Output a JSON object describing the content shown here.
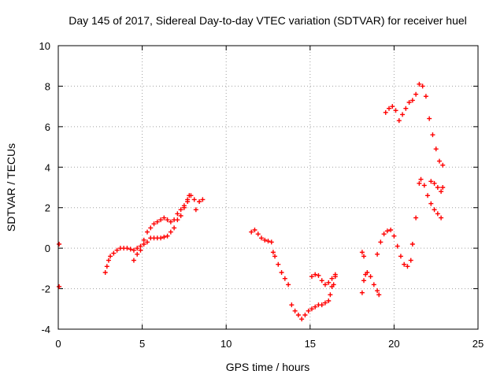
{
  "chart_data": {
    "type": "scatter",
    "title": "Day 145 of 2017, Sidereal Day-to-day VTEC variation (SDTVAR) for receiver huel",
    "xlabel": "GPS time / hours",
    "ylabel": "SDTVAR / TECUs",
    "xlim": [
      0,
      25
    ],
    "ylim": [
      -4,
      10
    ],
    "xticks": [
      "0",
      "5",
      "10",
      "15",
      "20",
      "25"
    ],
    "yticks": [
      "-4",
      "-2",
      "0",
      "2",
      "4",
      "6",
      "8",
      "10"
    ],
    "grid": true,
    "marker": "plus",
    "color": "#ff0000",
    "series": [
      {
        "values": [
          [
            0.05,
            0.2
          ],
          [
            0.05,
            -1.9
          ],
          [
            2.8,
            -1.2
          ],
          [
            2.9,
            -0.9
          ],
          [
            3.0,
            -0.6
          ],
          [
            3.1,
            -0.4
          ],
          [
            3.3,
            -0.25
          ],
          [
            3.5,
            -0.1
          ],
          [
            3.7,
            0.0
          ],
          [
            3.9,
            0.0
          ],
          [
            4.1,
            0.0
          ],
          [
            4.3,
            -0.05
          ],
          [
            4.5,
            -0.1
          ],
          [
            4.7,
            0.0
          ],
          [
            4.9,
            0.1
          ],
          [
            5.1,
            0.2
          ],
          [
            5.3,
            0.3
          ],
          [
            5.5,
            0.5
          ],
          [
            5.7,
            0.5
          ],
          [
            5.9,
            0.5
          ],
          [
            6.1,
            0.5
          ],
          [
            6.3,
            0.55
          ],
          [
            6.5,
            0.6
          ],
          [
            6.7,
            0.8
          ],
          [
            6.9,
            1.0
          ],
          [
            7.1,
            1.4
          ],
          [
            7.3,
            1.6
          ],
          [
            7.5,
            2.0
          ],
          [
            7.7,
            2.3
          ],
          [
            7.8,
            2.6
          ],
          [
            4.5,
            -0.6
          ],
          [
            4.7,
            -0.3
          ],
          [
            4.9,
            -0.1
          ],
          [
            5.1,
            0.4
          ],
          [
            5.3,
            0.8
          ],
          [
            5.5,
            1.0
          ],
          [
            5.7,
            1.2
          ],
          [
            5.9,
            1.3
          ],
          [
            6.1,
            1.4
          ],
          [
            6.3,
            1.5
          ],
          [
            6.5,
            1.4
          ],
          [
            6.7,
            1.3
          ],
          [
            6.9,
            1.4
          ],
          [
            7.1,
            1.7
          ],
          [
            7.3,
            1.9
          ],
          [
            7.5,
            2.1
          ],
          [
            7.7,
            2.4
          ],
          [
            7.9,
            2.6
          ],
          [
            8.1,
            2.4
          ],
          [
            8.2,
            1.9
          ],
          [
            8.4,
            2.3
          ],
          [
            8.6,
            2.4
          ],
          [
            11.5,
            0.8
          ],
          [
            11.7,
            0.9
          ],
          [
            11.9,
            0.7
          ],
          [
            12.1,
            0.5
          ],
          [
            12.3,
            0.4
          ],
          [
            12.5,
            0.35
          ],
          [
            12.7,
            0.3
          ],
          [
            12.8,
            -0.2
          ],
          [
            12.9,
            -0.4
          ],
          [
            13.1,
            -0.8
          ],
          [
            13.3,
            -1.2
          ],
          [
            13.5,
            -1.5
          ],
          [
            13.7,
            -1.8
          ],
          [
            13.9,
            -2.8
          ],
          [
            14.1,
            -3.1
          ],
          [
            14.3,
            -3.3
          ],
          [
            14.5,
            -3.5
          ],
          [
            14.7,
            -3.3
          ],
          [
            14.9,
            -3.1
          ],
          [
            15.1,
            -3.0
          ],
          [
            15.3,
            -2.9
          ],
          [
            15.5,
            -2.8
          ],
          [
            15.7,
            -2.8
          ],
          [
            15.9,
            -2.7
          ],
          [
            16.1,
            -2.6
          ],
          [
            16.2,
            -2.3
          ],
          [
            16.3,
            -1.9
          ],
          [
            16.4,
            -1.8
          ],
          [
            16.5,
            -1.4
          ],
          [
            15.1,
            -1.4
          ],
          [
            15.3,
            -1.3
          ],
          [
            15.5,
            -1.35
          ],
          [
            15.7,
            -1.6
          ],
          [
            15.9,
            -1.8
          ],
          [
            16.1,
            -1.7
          ],
          [
            16.3,
            -1.5
          ],
          [
            16.5,
            -1.3
          ],
          [
            18.1,
            -0.2
          ],
          [
            18.2,
            -0.4
          ],
          [
            18.1,
            -2.2
          ],
          [
            18.2,
            -1.6
          ],
          [
            18.3,
            -1.3
          ],
          [
            18.4,
            -1.2
          ],
          [
            18.6,
            -1.4
          ],
          [
            18.8,
            -1.8
          ],
          [
            19.0,
            -2.1
          ],
          [
            19.1,
            -2.3
          ],
          [
            19.0,
            -0.3
          ],
          [
            19.2,
            0.3
          ],
          [
            19.4,
            0.7
          ],
          [
            19.6,
            0.85
          ],
          [
            19.8,
            0.9
          ],
          [
            20.0,
            0.6
          ],
          [
            20.2,
            0.1
          ],
          [
            20.4,
            -0.4
          ],
          [
            20.6,
            -0.8
          ],
          [
            20.8,
            -0.9
          ],
          [
            21.0,
            -0.6
          ],
          [
            21.1,
            0.2
          ],
          [
            21.3,
            1.5
          ],
          [
            21.5,
            3.2
          ],
          [
            21.6,
            3.4
          ],
          [
            21.8,
            3.1
          ],
          [
            22.0,
            2.6
          ],
          [
            22.2,
            2.2
          ],
          [
            22.4,
            1.9
          ],
          [
            22.6,
            1.7
          ],
          [
            22.8,
            1.5
          ],
          [
            19.5,
            6.7
          ],
          [
            19.7,
            6.9
          ],
          [
            19.9,
            7.0
          ],
          [
            20.1,
            6.8
          ],
          [
            20.3,
            6.3
          ],
          [
            20.5,
            6.6
          ],
          [
            20.7,
            6.9
          ],
          [
            20.9,
            7.2
          ],
          [
            21.1,
            7.3
          ],
          [
            21.3,
            7.6
          ],
          [
            21.5,
            8.1
          ],
          [
            21.7,
            8.0
          ],
          [
            21.9,
            7.5
          ],
          [
            22.1,
            6.4
          ],
          [
            22.3,
            5.6
          ],
          [
            22.5,
            4.9
          ],
          [
            22.7,
            4.3
          ],
          [
            22.9,
            4.1
          ],
          [
            22.2,
            3.3
          ],
          [
            22.4,
            3.2
          ],
          [
            22.6,
            3.0
          ],
          [
            22.8,
            2.8
          ],
          [
            22.9,
            3.0
          ]
        ]
      }
    ]
  }
}
